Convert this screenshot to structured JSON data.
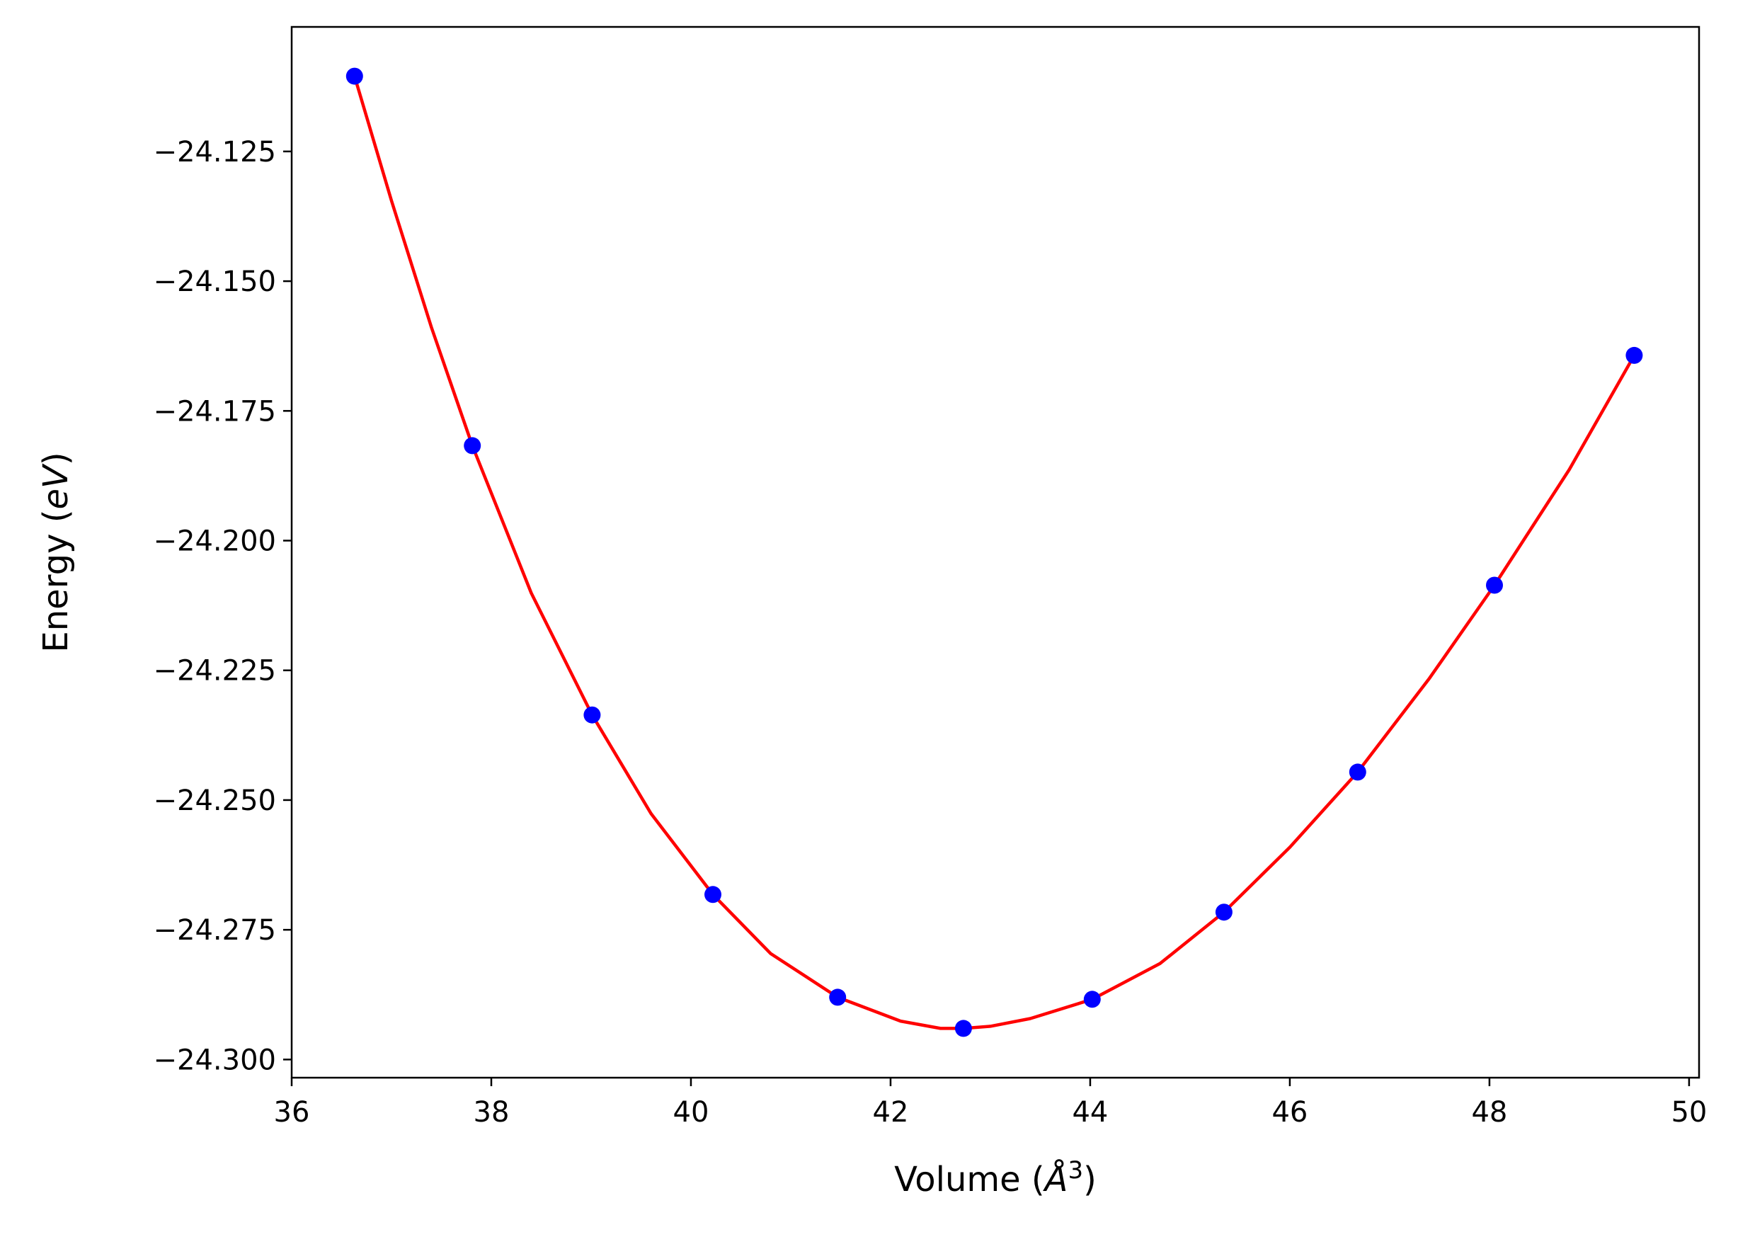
{
  "chart_data": {
    "type": "scatter",
    "title": "",
    "xlabel": "Volume (",
    "xlabel_symbol": "Å",
    "xlabel_exponent": "3",
    "xlabel_close": ")",
    "ylabel": "Energy (",
    "ylabel_unit": "eV",
    "ylabel_close": ")",
    "xlim": [
      36,
      50.1
    ],
    "ylim": [
      -24.3035,
      -24.101
    ],
    "xticks": [
      36,
      38,
      40,
      42,
      44,
      46,
      48,
      50
    ],
    "xtick_labels": [
      "36",
      "38",
      "40",
      "42",
      "44",
      "46",
      "48",
      "50"
    ],
    "yticks": [
      -24.125,
      -24.15,
      -24.175,
      -24.2,
      -24.225,
      -24.25,
      -24.275,
      -24.3
    ],
    "ytick_labels": [
      "−24.125",
      "−24.150",
      "−24.175",
      "−24.200",
      "−24.225",
      "−24.250",
      "−24.275",
      "−24.300"
    ],
    "grid": false,
    "colors": {
      "points": "#0000ff",
      "fit": "#ff0000",
      "axes": "#000000"
    },
    "series": [
      {
        "kind": "points",
        "x": [
          36.63,
          37.81,
          39.01,
          40.22,
          41.47,
          42.73,
          44.02,
          45.34,
          46.68,
          48.05,
          49.45
        ],
        "y": [
          -24.1105,
          -24.1817,
          -24.2336,
          -24.2682,
          -24.288,
          -24.294,
          -24.2884,
          -24.2716,
          -24.2446,
          -24.2086,
          -24.1643
        ]
      },
      {
        "kind": "fit",
        "x": [
          36.63,
          37.0,
          37.4,
          37.81,
          38.4,
          39.01,
          39.6,
          40.22,
          40.8,
          41.47,
          42.1,
          42.5,
          42.73,
          43.0,
          43.4,
          44.02,
          44.7,
          45.34,
          46.0,
          46.68,
          47.4,
          48.05,
          48.8,
          49.45
        ],
        "y": [
          -24.1105,
          -24.1345,
          -24.1589,
          -24.1817,
          -24.2101,
          -24.2336,
          -24.2526,
          -24.2682,
          -24.2796,
          -24.288,
          -24.2926,
          -24.294,
          -24.294,
          -24.2936,
          -24.2921,
          -24.2884,
          -24.2815,
          -24.2716,
          -24.2591,
          -24.2446,
          -24.2265,
          -24.2086,
          -24.1863,
          -24.1643
        ]
      }
    ]
  }
}
